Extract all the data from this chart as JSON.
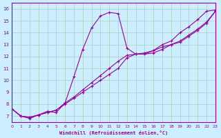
{
  "xlabel": "Windchill (Refroidissement éolien,°C)",
  "background_color": "#cceeff",
  "grid_color": "#aaccbb",
  "line_color": "#990099",
  "xlim": [
    0,
    23
  ],
  "ylim": [
    6.5,
    16.5
  ],
  "xticks": [
    0,
    1,
    2,
    3,
    4,
    5,
    6,
    7,
    8,
    9,
    10,
    11,
    12,
    13,
    14,
    15,
    16,
    17,
    18,
    19,
    20,
    21,
    22,
    23
  ],
  "yticks": [
    7,
    8,
    9,
    10,
    11,
    12,
    13,
    14,
    15,
    16
  ],
  "series1_x": [
    0,
    1,
    2,
    3,
    4,
    5,
    6,
    7,
    8,
    9,
    10,
    11,
    12,
    13,
    14,
    15,
    16,
    17,
    18,
    19,
    20,
    21,
    22,
    23
  ],
  "series1_y": [
    7.6,
    7.0,
    6.8,
    7.1,
    7.4,
    7.3,
    8.1,
    10.3,
    12.6,
    14.4,
    15.4,
    15.7,
    15.6,
    12.7,
    12.2,
    12.2,
    12.5,
    13.0,
    13.3,
    14.0,
    14.5,
    15.1,
    15.8,
    15.9
  ],
  "series2_x": [
    0,
    1,
    2,
    3,
    4,
    5,
    6,
    7,
    8,
    9,
    10,
    11,
    12,
    13,
    14,
    15,
    16,
    17,
    18,
    19,
    20,
    21,
    22,
    23
  ],
  "series2_y": [
    7.6,
    7.0,
    6.9,
    7.1,
    7.3,
    7.5,
    8.1,
    8.6,
    9.2,
    9.8,
    10.4,
    11.0,
    11.6,
    12.1,
    12.2,
    12.2,
    12.3,
    12.6,
    13.0,
    13.3,
    13.8,
    14.3,
    14.9,
    15.8
  ],
  "series3_x": [
    0,
    1,
    2,
    3,
    4,
    5,
    6,
    7,
    8,
    9,
    10,
    11,
    12,
    13,
    14,
    15,
    16,
    17,
    18,
    19,
    20,
    21,
    22,
    23
  ],
  "series3_y": [
    7.6,
    7.0,
    6.9,
    7.1,
    7.3,
    7.5,
    8.0,
    8.5,
    9.0,
    9.5,
    10.0,
    10.5,
    11.0,
    11.9,
    12.2,
    12.3,
    12.5,
    12.8,
    13.0,
    13.2,
    13.7,
    14.2,
    14.8,
    15.8
  ]
}
